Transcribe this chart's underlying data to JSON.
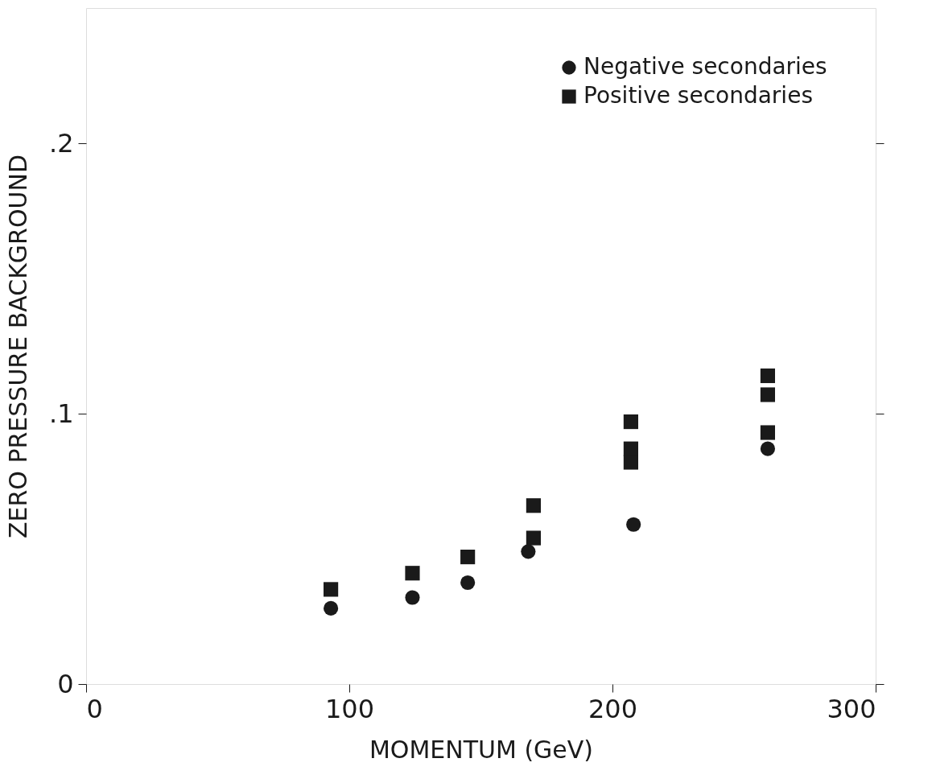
{
  "chart_data": {
    "type": "scatter",
    "xlabel": "MOMENTUM (GeV)",
    "ylabel": "ZERO PRESSURE BACKGROUND",
    "xlim": [
      0,
      300
    ],
    "xticks": [
      0,
      100,
      200,
      300
    ],
    "ylim": [
      0,
      0.25
    ],
    "yticks": [
      0,
      {
        "value": 0.1,
        "label": ".1"
      },
      {
        "value": 0.2,
        "label": ".2"
      }
    ],
    "legend": "top right",
    "grid": false,
    "series": [
      {
        "name": "Negative secondaries",
        "color": "#1a1a1a",
        "marker": "circle",
        "x": [
          93,
          124,
          145,
          168,
          208,
          259
        ],
        "values": [
          0.028,
          0.032,
          0.0375,
          0.049,
          0.059,
          0.087
        ]
      },
      {
        "name": "Positive secondaries",
        "color": "#1a1a1a",
        "marker": "square",
        "x": [
          93,
          124,
          145,
          170,
          170,
          207,
          207,
          207,
          259,
          259,
          259
        ],
        "values": [
          0.035,
          0.041,
          0.047,
          0.054,
          0.066,
          0.097,
          0.087,
          0.082,
          0.114,
          0.107,
          0.093
        ]
      }
    ]
  }
}
